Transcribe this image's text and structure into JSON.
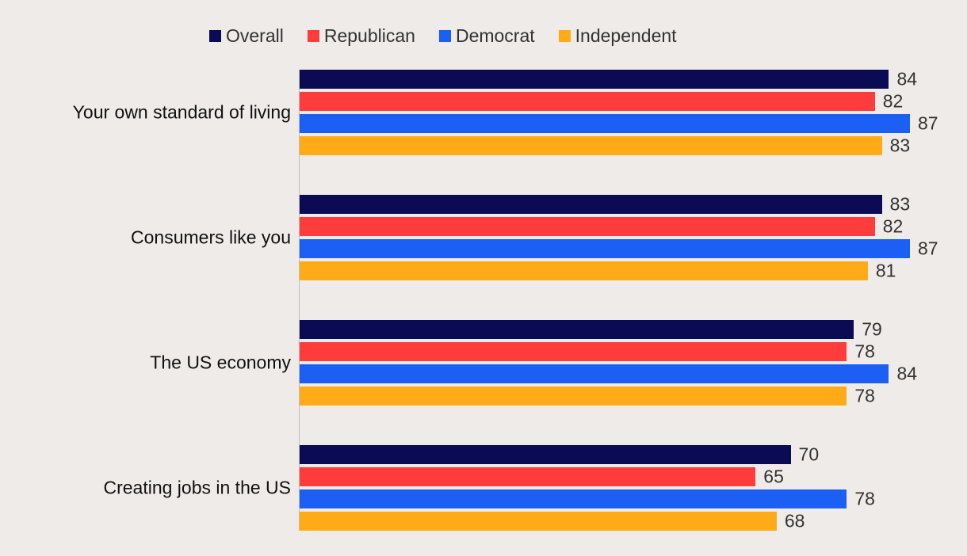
{
  "chart_data": {
    "type": "bar",
    "orientation": "horizontal",
    "categories": [
      "Your own standard of living",
      "Consumers like you",
      "The US economy",
      "Creating jobs in the US"
    ],
    "series": [
      {
        "name": "Overall",
        "color": "#0a0a55",
        "values": [
          84,
          83,
          79,
          70
        ]
      },
      {
        "name": "Republican",
        "color": "#ff3c3c",
        "values": [
          82,
          82,
          78,
          65
        ]
      },
      {
        "name": "Democrat",
        "color": "#1c5ff5",
        "values": [
          87,
          87,
          84,
          78
        ]
      },
      {
        "name": "Independent",
        "color": "#ffab17",
        "values": [
          83,
          81,
          78,
          68
        ]
      }
    ],
    "xlim": [
      0,
      87
    ],
    "legend_position": "top"
  }
}
